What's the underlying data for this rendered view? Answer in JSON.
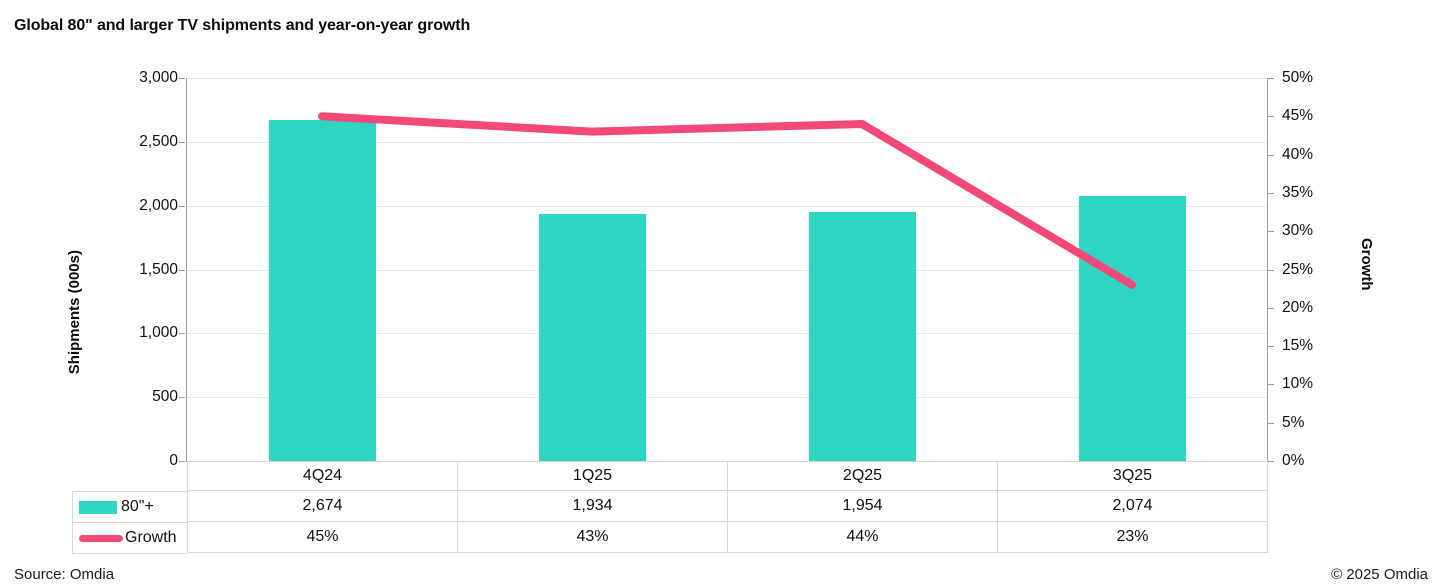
{
  "title": "Global 80\" and larger TV shipments and year-on-year growth",
  "chart_data": {
    "type": "bar-line-combo",
    "categories": [
      "4Q24",
      "1Q25",
      "2Q25",
      "3Q25"
    ],
    "series": [
      {
        "name": "80\"+",
        "chart_type": "bar",
        "axis": "left",
        "color": "#2fd6c3",
        "values": [
          2674,
          1934,
          1954,
          2074
        ],
        "labels": [
          "2,674",
          "1,934",
          "1,954",
          "2,074"
        ]
      },
      {
        "name": "Growth",
        "chart_type": "line",
        "axis": "right",
        "color": "#f24978",
        "values": [
          45,
          43,
          44,
          23
        ],
        "labels": [
          "45%",
          "43%",
          "44%",
          "23%"
        ]
      }
    ],
    "left_axis": {
      "label": "Shipments (000s)",
      "min": 0,
      "max": 3000,
      "step": 500,
      "ticks": [
        "3,000",
        "2,500",
        "2,000",
        "1,500",
        "1,000",
        "500",
        "0"
      ]
    },
    "right_axis": {
      "label": "Growth",
      "min": 0,
      "max": 50,
      "step": 5,
      "ticks": [
        "50%",
        "45%",
        "40%",
        "35%",
        "30%",
        "25%",
        "20%",
        "15%",
        "10%",
        "5%",
        "0%"
      ]
    },
    "grid": true,
    "legend_position": "data-table-left",
    "data_table": true
  },
  "footer": {
    "source": "Source: Omdia",
    "copyright": "© 2025 Omdia"
  }
}
